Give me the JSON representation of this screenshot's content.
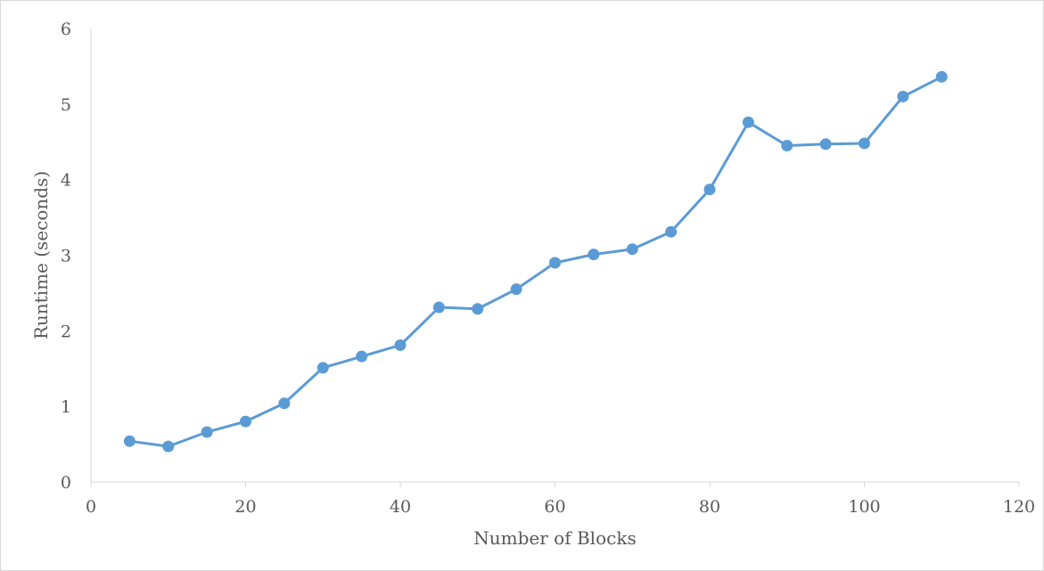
{
  "chart_data": {
    "type": "line",
    "title": "",
    "xlabel": "Number of Blocks",
    "ylabel": "Runtime (seconds)",
    "xlim": [
      0,
      120
    ],
    "ylim": [
      0,
      6
    ],
    "xticks": [
      0,
      20,
      40,
      60,
      80,
      100,
      120
    ],
    "yticks": [
      0,
      1,
      2,
      3,
      4,
      5,
      6
    ],
    "grid": false,
    "color": "#5b9bd5",
    "series": [
      {
        "x": [
          5,
          10,
          15,
          20,
          25,
          30,
          35,
          40,
          45,
          50,
          55,
          60,
          65,
          70,
          75,
          80,
          85,
          90,
          95,
          100,
          105,
          110
        ],
        "y": [
          0.54,
          0.47,
          0.66,
          0.8,
          1.04,
          1.51,
          1.66,
          1.81,
          2.31,
          2.29,
          2.55,
          2.9,
          3.01,
          3.08,
          3.31,
          3.87,
          4.76,
          4.45,
          4.47,
          4.48,
          5.1,
          5.36
        ]
      }
    ]
  }
}
